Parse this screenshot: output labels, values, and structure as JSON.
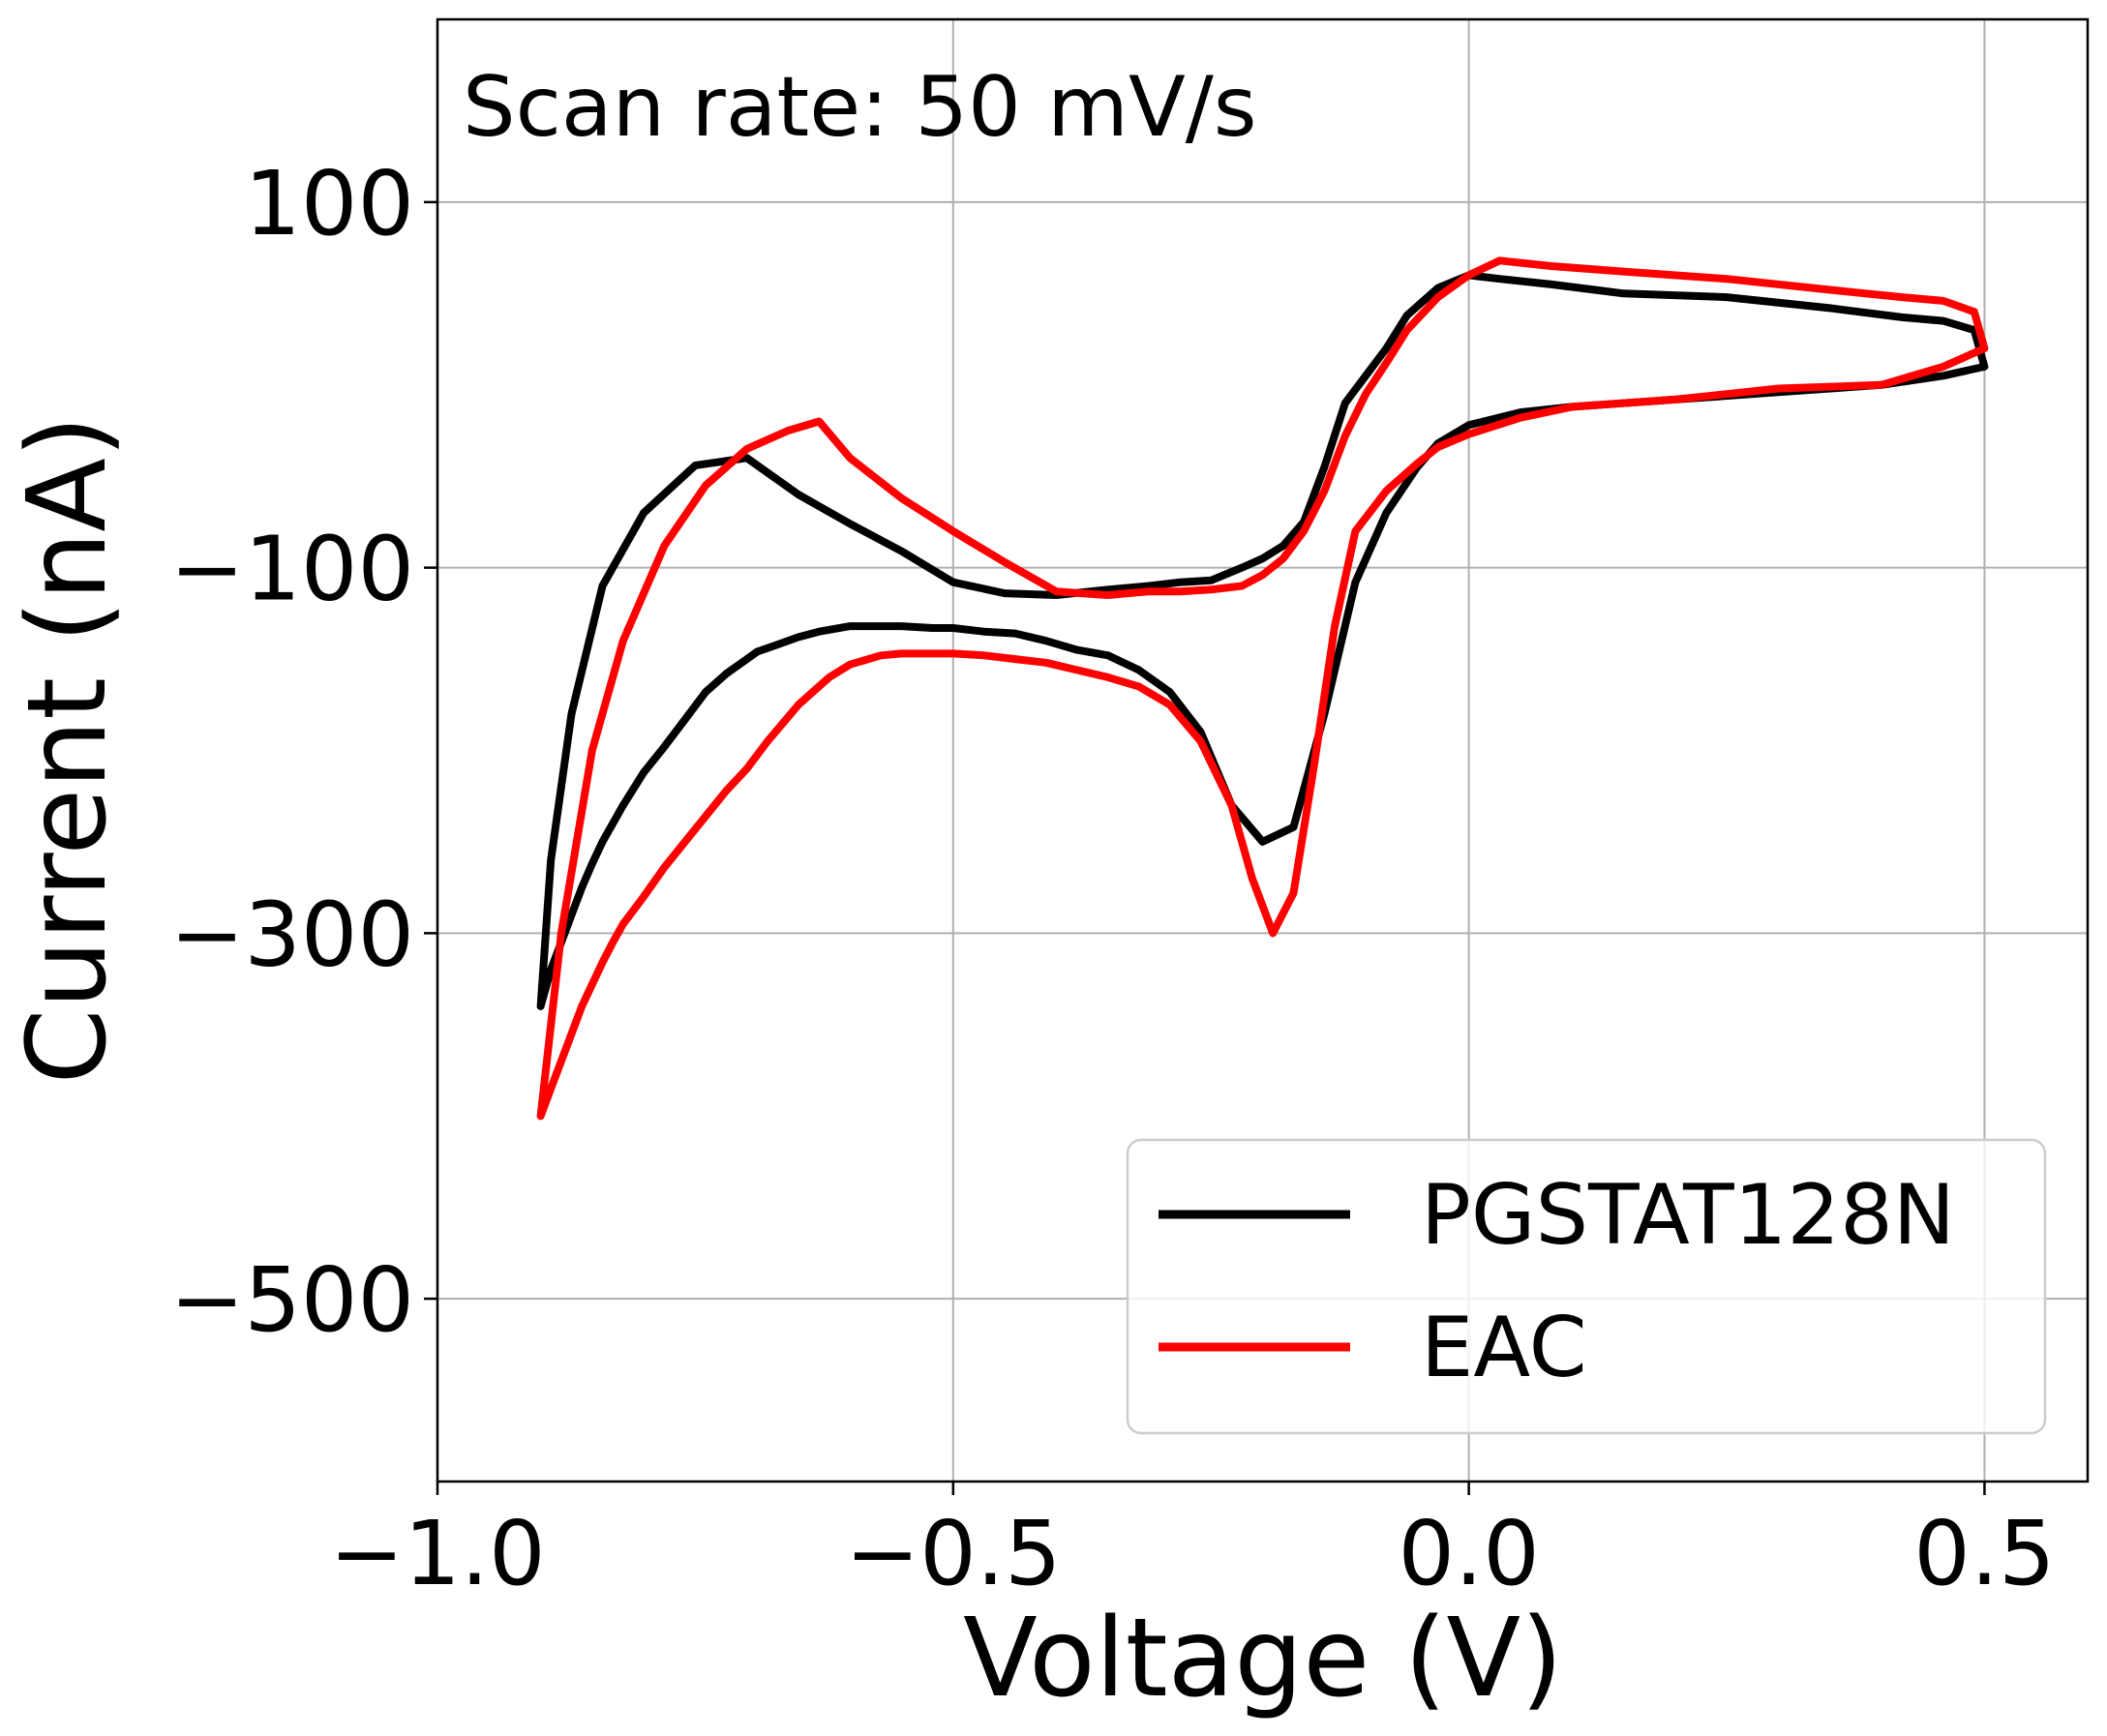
{
  "chart_data": {
    "type": "line",
    "title": "",
    "annotation": "Scan rate: 50 mV/s",
    "xlabel": "Voltage (V)",
    "ylabel": "Current (nA)",
    "xlim": [
      -1.0,
      0.6
    ],
    "ylim": [
      -600,
      200
    ],
    "xticks": [
      -1.0,
      -0.5,
      0.0,
      0.5
    ],
    "xtick_labels": [
      "−1.0",
      "−0.5",
      "0.0",
      "0.5"
    ],
    "yticks": [
      -500,
      -300,
      -100,
      100
    ],
    "ytick_labels": [
      "−500",
      "−300",
      "−100",
      "100"
    ],
    "grid": true,
    "legend_position": "bottom-right",
    "series": [
      {
        "name": "PGSTAT128N",
        "color": "#000000",
        "x": [
          -0.9,
          -0.89,
          -0.88,
          -0.87,
          -0.86,
          -0.85,
          -0.84,
          -0.83,
          -0.82,
          -0.8,
          -0.78,
          -0.76,
          -0.74,
          -0.72,
          -0.7,
          -0.69,
          -0.67,
          -0.65,
          -0.63,
          -0.6,
          -0.57,
          -0.55,
          -0.52,
          -0.5,
          -0.47,
          -0.44,
          -0.41,
          -0.38,
          -0.35,
          -0.32,
          -0.29,
          -0.26,
          -0.23,
          -0.2,
          -0.17,
          -0.14,
          -0.11,
          -0.08,
          -0.05,
          -0.03,
          0.0,
          0.05,
          0.1,
          0.2,
          0.3,
          0.4,
          0.46,
          0.5,
          0.49,
          0.46,
          0.42,
          0.35,
          0.25,
          0.15,
          0.08,
          0.03,
          0.0,
          -0.03,
          -0.06,
          -0.08,
          -0.1,
          -0.12,
          -0.14,
          -0.16,
          -0.18,
          -0.2,
          -0.22,
          -0.25,
          -0.28,
          -0.31,
          -0.35,
          -0.4,
          -0.45,
          -0.5,
          -0.55,
          -0.6,
          -0.65,
          -0.7,
          -0.75,
          -0.8,
          -0.84,
          -0.87,
          -0.89,
          -0.9
        ],
        "y": [
          -340,
          -320,
          -305,
          -290,
          -275,
          -262,
          -250,
          -240,
          -230,
          -212,
          -198,
          -183,
          -168,
          -158,
          -150,
          -146,
          -142,
          -138,
          -135,
          -132,
          -132,
          -132,
          -133,
          -133,
          -135,
          -136,
          -140,
          -145,
          -148,
          -156,
          -168,
          -190,
          -230,
          -250,
          -242,
          -180,
          -108,
          -70,
          -45,
          -32,
          -22,
          -15,
          -12,
          -8,
          -4,
          0,
          5,
          10,
          30,
          35,
          37,
          42,
          48,
          50,
          55,
          58,
          60,
          53,
          38,
          20,
          5,
          -10,
          -45,
          -75,
          -88,
          -95,
          -100,
          -107,
          -108,
          -110,
          -112,
          -115,
          -114,
          -108,
          -91,
          -76,
          -60,
          -40,
          -44,
          -70,
          -110,
          -180,
          -260,
          -340
        ]
      },
      {
        "name": "EAC",
        "color": "#ff0000",
        "x": [
          -0.9,
          -0.89,
          -0.88,
          -0.87,
          -0.86,
          -0.85,
          -0.84,
          -0.83,
          -0.82,
          -0.8,
          -0.78,
          -0.76,
          -0.74,
          -0.72,
          -0.7,
          -0.68,
          -0.65,
          -0.62,
          -0.6,
          -0.57,
          -0.55,
          -0.52,
          -0.5,
          -0.47,
          -0.44,
          -0.41,
          -0.38,
          -0.35,
          -0.32,
          -0.29,
          -0.26,
          -0.23,
          -0.21,
          -0.19,
          -0.17,
          -0.15,
          -0.13,
          -0.11,
          -0.08,
          -0.05,
          -0.03,
          0.0,
          0.05,
          0.1,
          0.2,
          0.3,
          0.4,
          0.46,
          0.5,
          0.49,
          0.46,
          0.42,
          0.35,
          0.25,
          0.15,
          0.08,
          0.03,
          0.0,
          -0.03,
          -0.06,
          -0.08,
          -0.1,
          -0.12,
          -0.14,
          -0.16,
          -0.18,
          -0.2,
          -0.22,
          -0.25,
          -0.28,
          -0.31,
          -0.35,
          -0.4,
          -0.45,
          -0.5,
          -0.55,
          -0.6,
          -0.63,
          -0.66,
          -0.7,
          -0.74,
          -0.78,
          -0.82,
          -0.85,
          -0.88,
          -0.9
        ],
        "y": [
          -400,
          -385,
          -370,
          -355,
          -340,
          -328,
          -316,
          -305,
          -295,
          -280,
          -264,
          -250,
          -236,
          -222,
          -210,
          -195,
          -175,
          -160,
          -153,
          -148,
          -147,
          -147,
          -147,
          -148,
          -150,
          -152,
          -156,
          -160,
          -165,
          -175,
          -195,
          -230,
          -270,
          -300,
          -278,
          -208,
          -132,
          -80,
          -58,
          -43,
          -34,
          -27,
          -18,
          -12,
          -8,
          -2,
          0,
          10,
          20,
          40,
          46,
          48,
          52,
          58,
          62,
          65,
          68,
          60,
          48,
          30,
          12,
          -5,
          -28,
          -58,
          -80,
          -95,
          -104,
          -110,
          -112,
          -113,
          -113,
          -115,
          -113,
          -97,
          -80,
          -62,
          -40,
          -20,
          -25,
          -35,
          -55,
          -88,
          -140,
          -200,
          -300,
          -400
        ]
      }
    ]
  }
}
